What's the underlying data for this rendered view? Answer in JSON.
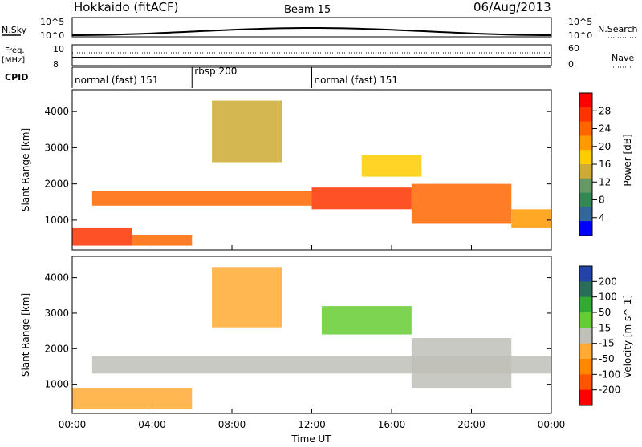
{
  "header": {
    "title": "Hokkaido (fitACF)",
    "beam": "Beam 15",
    "date": "06/Aug/2013"
  },
  "top_panels": {
    "nsky_label": "N.Sky",
    "nsky_ticks": [
      "10^5",
      "10^0"
    ],
    "nsearch_label": "N.Search",
    "nsearch_ticks": [
      "10^5",
      "10^0"
    ],
    "freq_label_1": "Freq.",
    "freq_label_2": "[MHz]",
    "freq_ticks": [
      "10",
      "8"
    ],
    "nave_label": "Nave",
    "nave_ticks": [
      "60",
      "0"
    ],
    "cpid_label": "CPID",
    "cpid_segments": [
      {
        "label": "normal (fast) 151",
        "start_hour": 0,
        "end_hour": 6
      },
      {
        "label": "rbsp 200",
        "start_hour": 6,
        "end_hour": 12
      },
      {
        "label": "normal (fast) 151",
        "start_hour": 12,
        "end_hour": 24
      }
    ]
  },
  "power_panel": {
    "ylabel": "Slant Range [km]",
    "yticks": [
      "4000",
      "3000",
      "2000",
      "1000"
    ],
    "colorbar_label": "Power [dB]",
    "colorbar_ticks": [
      "28",
      "24",
      "20",
      "16",
      "12",
      "8",
      "4"
    ],
    "colors": [
      "#ff0000",
      "#ff3300",
      "#ff6600",
      "#ff9900",
      "#ffcc00",
      "#ccaa33",
      "#669966",
      "#338855",
      "#336699",
      "#0000ff"
    ]
  },
  "velocity_panel": {
    "ylabel": "Slant Range [km]",
    "yticks": [
      "4000",
      "3000",
      "2000",
      "1000"
    ],
    "colorbar_label": "Velocity [m s^-1]",
    "colorbar_ticks": [
      "200",
      "100",
      "50",
      "15",
      "-15",
      "-50",
      "-100",
      "-200"
    ],
    "colors": [
      "#2244aa",
      "#2a6e5a",
      "#33aa33",
      "#66cc33",
      "#c0c0b8",
      "#ffaa33",
      "#ff8800",
      "#ff5500",
      "#ff0000"
    ]
  },
  "xaxis": {
    "label": "Time UT",
    "ticks": [
      "00:00",
      "04:00",
      "08:00",
      "12:00",
      "16:00",
      "20:00",
      "00:00"
    ]
  },
  "chart_data": [
    {
      "type": "heatmap",
      "title": "Power [dB]",
      "xlabel": "Time UT",
      "ylabel": "Slant Range [km]",
      "xlim_hours": [
        0,
        24
      ],
      "ylim_km": [
        180,
        4600
      ],
      "zlim": [
        0,
        30
      ],
      "bands": [
        {
          "start_hour": 0.0,
          "end_hour": 3.0,
          "range_km": [
            300,
            800
          ],
          "value": 28
        },
        {
          "start_hour": 3.0,
          "end_hour": 6.0,
          "range_km": [
            300,
            600
          ],
          "value": 24
        },
        {
          "start_hour": 1.0,
          "end_hour": 12.0,
          "range_km": [
            1400,
            1800
          ],
          "value": 22
        },
        {
          "start_hour": 12.0,
          "end_hour": 17.0,
          "range_km": [
            1300,
            1900
          ],
          "value": 26
        },
        {
          "start_hour": 17.0,
          "end_hour": 22.0,
          "range_km": [
            900,
            2000
          ],
          "value": 24
        },
        {
          "start_hour": 22.0,
          "end_hour": 24.0,
          "range_km": [
            800,
            1300
          ],
          "value": 20
        },
        {
          "start_hour": 7.0,
          "end_hour": 10.5,
          "range_km": [
            2600,
            4300
          ],
          "value": 14
        },
        {
          "start_hour": 14.5,
          "end_hour": 17.5,
          "range_km": [
            2200,
            2800
          ],
          "value": 18
        }
      ]
    },
    {
      "type": "heatmap",
      "title": "Velocity [m s^-1]",
      "xlabel": "Time UT",
      "ylabel": "Slant Range [km]",
      "xlim_hours": [
        0,
        24
      ],
      "ylim_km": [
        180,
        4600
      ],
      "zlim": [
        -200,
        200
      ],
      "bands": [
        {
          "start_hour": 0.0,
          "end_hour": 6.0,
          "range_km": [
            300,
            900
          ],
          "value": -30
        },
        {
          "start_hour": 1.0,
          "end_hour": 24.0,
          "range_km": [
            1300,
            1800
          ],
          "value": 0
        },
        {
          "start_hour": 7.0,
          "end_hour": 10.5,
          "range_km": [
            2600,
            4300
          ],
          "value": -50
        },
        {
          "start_hour": 12.5,
          "end_hour": 17.0,
          "range_km": [
            2400,
            3200
          ],
          "value": 40
        },
        {
          "start_hour": 17.0,
          "end_hour": 22.0,
          "range_km": [
            900,
            2300
          ],
          "value": 0
        }
      ]
    }
  ]
}
